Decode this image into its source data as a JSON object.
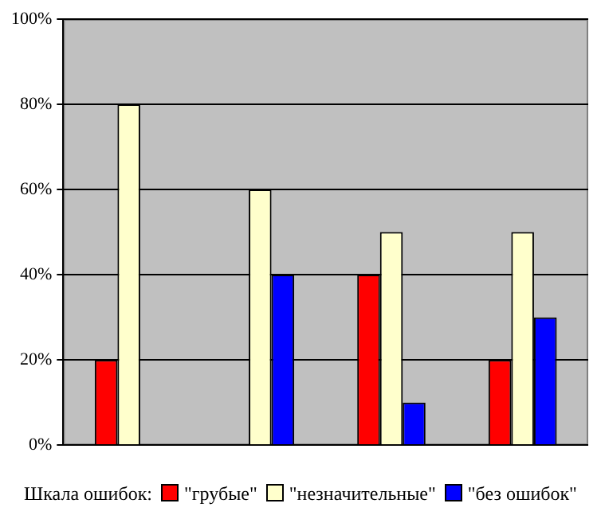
{
  "chart_data": {
    "type": "bar",
    "legend_title": "Шкала ошибок:",
    "categories": [
      null,
      null,
      null,
      null
    ],
    "series": [
      {
        "name": "\"грубые\"",
        "color": "#ff0000",
        "values": [
          20,
          0,
          40,
          20
        ]
      },
      {
        "name": "\"незначительные\"",
        "color": "#ffffcc",
        "values": [
          80,
          60,
          50,
          50
        ]
      },
      {
        "name": "\"без ошибок\"",
        "color": "#0000ff",
        "values": [
          0,
          40,
          10,
          30
        ]
      }
    ],
    "ylim": [
      0,
      100
    ],
    "yticks": [
      {
        "value": 0,
        "label": "0%"
      },
      {
        "value": 20,
        "label": "20%"
      },
      {
        "value": 40,
        "label": "40%"
      },
      {
        "value": 60,
        "label": "60%"
      },
      {
        "value": 80,
        "label": "80%"
      },
      {
        "value": 100,
        "label": "100%"
      }
    ],
    "grid": "y",
    "legend": "bottom"
  }
}
